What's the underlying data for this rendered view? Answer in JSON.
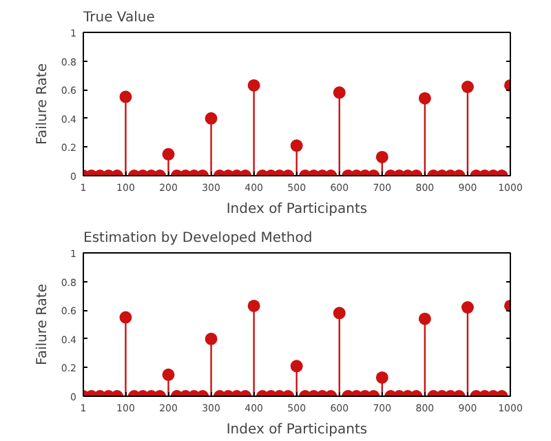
{
  "chart_data": [
    {
      "type": "lollipop",
      "title": "True Value",
      "xlabel": "Index of Participants",
      "ylabel": "Failure Rate",
      "xlim": [
        1,
        1000
      ],
      "ylim": [
        0,
        1
      ],
      "xticks": [
        1,
        100,
        200,
        300,
        400,
        500,
        600,
        700,
        800,
        900,
        1000
      ],
      "yticks": [
        0,
        0.2,
        0.4,
        0.6,
        0.8,
        1
      ],
      "grid": false,
      "marker": "circle",
      "series": [
        {
          "color": "#cc1111",
          "x": [
            1,
            20,
            40,
            60,
            80,
            100,
            120,
            140,
            160,
            180,
            200,
            220,
            240,
            260,
            280,
            300,
            320,
            340,
            360,
            380,
            400,
            420,
            440,
            460,
            480,
            500,
            520,
            540,
            560,
            580,
            600,
            620,
            640,
            660,
            680,
            700,
            720,
            740,
            760,
            780,
            800,
            820,
            840,
            860,
            880,
            900,
            920,
            940,
            960,
            980,
            1000
          ],
          "values": [
            0,
            0,
            0,
            0,
            0,
            0.55,
            0,
            0,
            0,
            0,
            0.15,
            0,
            0,
            0,
            0,
            0.4,
            0,
            0,
            0,
            0,
            0.63,
            0,
            0,
            0,
            0,
            0.21,
            0,
            0,
            0,
            0,
            0.58,
            0,
            0,
            0,
            0,
            0.13,
            0,
            0,
            0,
            0,
            0.54,
            0,
            0,
            0,
            0,
            0.62,
            0,
            0,
            0,
            0,
            0.63
          ]
        }
      ]
    },
    {
      "type": "lollipop",
      "title": "Estimation by Developed Method",
      "xlabel": "Index of Participants",
      "ylabel": "Failure Rate",
      "xlim": [
        1,
        1000
      ],
      "ylim": [
        0,
        1
      ],
      "xticks": [
        1,
        100,
        200,
        300,
        400,
        500,
        600,
        700,
        800,
        900,
        1000
      ],
      "yticks": [
        0,
        0.2,
        0.4,
        0.6,
        0.8,
        1
      ],
      "grid": false,
      "marker": "circle",
      "series": [
        {
          "color": "#cc1111",
          "x": [
            1,
            20,
            40,
            60,
            80,
            100,
            120,
            140,
            160,
            180,
            200,
            220,
            240,
            260,
            280,
            300,
            320,
            340,
            360,
            380,
            400,
            420,
            440,
            460,
            480,
            500,
            520,
            540,
            560,
            580,
            600,
            620,
            640,
            660,
            680,
            700,
            720,
            740,
            760,
            780,
            800,
            820,
            840,
            860,
            880,
            900,
            920,
            940,
            960,
            980,
            1000
          ],
          "values": [
            0,
            0,
            0,
            0,
            0,
            0.55,
            0,
            0,
            0,
            0,
            0.15,
            0,
            0,
            0,
            0,
            0.4,
            0,
            0,
            0,
            0,
            0.63,
            0,
            0,
            0,
            0,
            0.21,
            0,
            0,
            0,
            0,
            0.58,
            0,
            0,
            0,
            0,
            0.13,
            0,
            0,
            0,
            0,
            0.54,
            0,
            0,
            0,
            0,
            0.62,
            0,
            0,
            0,
            0,
            0.63
          ]
        }
      ]
    }
  ]
}
